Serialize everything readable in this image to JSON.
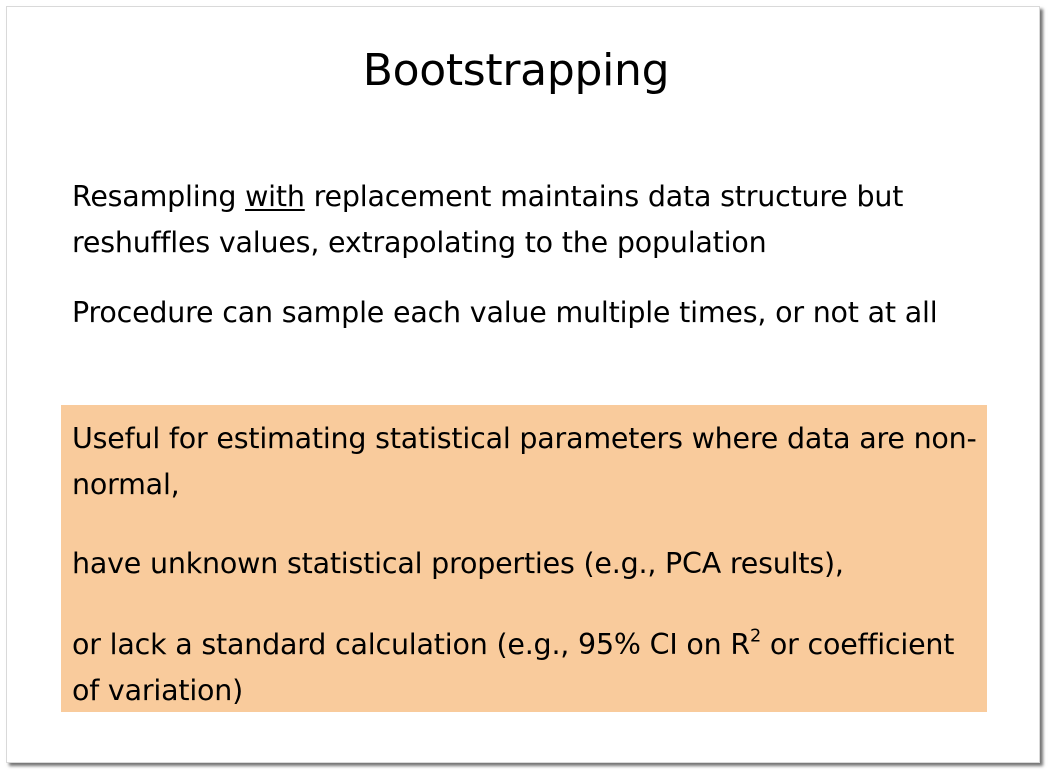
{
  "slide": {
    "title": "Bootstrapping",
    "bullets": {
      "first": {
        "pre": "Resampling ",
        "emphasis": "with",
        "line1_rest": " replacement maintains data structure but",
        "line2": "reshuffles values, extrapolating to the population"
      },
      "second": "Procedure can sample each value multiple times, or not at all"
    },
    "highlight": {
      "color": "#f9cb9c",
      "p1_line1": "Useful for estimating statistical parameters where data are non-",
      "p1_line2": "normal,",
      "p2": "have unknown statistical properties (e.g., PCA results),",
      "p3_line1_pre": "or lack a standard calculation (e.g., 95% CI on R",
      "p3_sup": "2",
      "p3_line1_post": " or coefficient",
      "p3_line2": "of variation)"
    }
  }
}
